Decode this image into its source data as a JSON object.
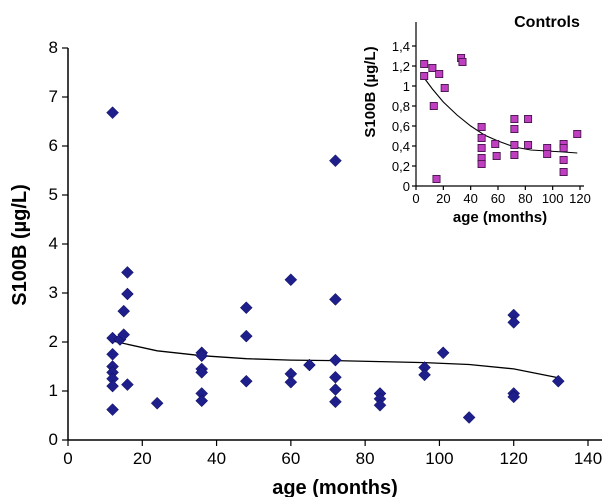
{
  "chart_data": [
    {
      "type": "scatter",
      "title": "",
      "xlabel": "age (months)",
      "ylabel": "S100B (µg/L)",
      "xlim": [
        0,
        140
      ],
      "ylim": [
        0,
        8
      ],
      "x_ticks": [
        "0",
        "20",
        "40",
        "60",
        "80",
        "100",
        "120",
        "140"
      ],
      "y_ticks": [
        "0",
        "1",
        "2",
        "3",
        "4",
        "5",
        "6",
        "7",
        "8"
      ],
      "grid": false,
      "marker": "diamond",
      "marker_color": "#1f1f8c",
      "series": [
        {
          "points": [
            [
              12,
              6.68
            ],
            [
              12,
              2.08
            ],
            [
              12,
              1.75
            ],
            [
              12,
              1.5
            ],
            [
              12,
              1.38
            ],
            [
              12,
              1.25
            ],
            [
              12,
              1.1
            ],
            [
              12,
              0.62
            ],
            [
              14,
              2.05
            ],
            [
              15,
              2.15
            ],
            [
              15,
              2.63
            ],
            [
              16,
              3.42
            ],
            [
              16,
              2.98
            ],
            [
              16,
              1.13
            ],
            [
              24,
              0.75
            ],
            [
              36,
              1.78
            ],
            [
              36,
              1.72
            ],
            [
              36,
              1.45
            ],
            [
              36,
              1.38
            ],
            [
              36,
              0.95
            ],
            [
              36,
              0.8
            ],
            [
              48,
              2.7
            ],
            [
              48,
              2.12
            ],
            [
              48,
              1.2
            ],
            [
              60,
              3.27
            ],
            [
              60,
              1.35
            ],
            [
              60,
              1.18
            ],
            [
              65,
              1.53
            ],
            [
              72,
              5.7
            ],
            [
              72,
              2.87
            ],
            [
              72,
              1.63
            ],
            [
              72,
              1.28
            ],
            [
              72,
              1.03
            ],
            [
              72,
              0.78
            ],
            [
              84,
              0.95
            ],
            [
              84,
              0.84
            ],
            [
              84,
              0.71
            ],
            [
              96,
              1.48
            ],
            [
              96,
              1.33
            ],
            [
              101,
              1.78
            ],
            [
              108,
              0.46
            ],
            [
              120,
              2.55
            ],
            [
              120,
              2.4
            ],
            [
              120,
              0.95
            ],
            [
              120,
              0.88
            ],
            [
              132,
              1.2
            ]
          ]
        }
      ],
      "trend_line": [
        [
          12,
          2.02
        ],
        [
          24,
          1.82
        ],
        [
          36,
          1.72
        ],
        [
          48,
          1.66
        ],
        [
          60,
          1.63
        ],
        [
          72,
          1.62
        ],
        [
          84,
          1.6
        ],
        [
          96,
          1.58
        ],
        [
          108,
          1.54
        ],
        [
          120,
          1.45
        ],
        [
          132,
          1.27
        ]
      ]
    },
    {
      "type": "scatter",
      "title": "Controls",
      "xlabel": "age (months)",
      "ylabel": "S100B (µg/L)",
      "xlim": [
        0,
        120
      ],
      "ylim": [
        0,
        1.4
      ],
      "x_ticks": [
        "0",
        "20",
        "40",
        "60",
        "80",
        "100",
        "120"
      ],
      "y_ticks": [
        "0",
        "0,2",
        "0,4",
        "0,6",
        "0,8",
        "1",
        "1,2",
        "1,4"
      ],
      "grid": false,
      "marker": "square",
      "marker_color": "#c03fc0",
      "series": [
        {
          "points": [
            [
              6,
              1.22
            ],
            [
              6,
              1.1
            ],
            [
              12,
              1.18
            ],
            [
              13,
              0.8
            ],
            [
              15,
              0.07
            ],
            [
              17,
              1.12
            ],
            [
              21,
              0.98
            ],
            [
              33,
              1.28
            ],
            [
              34,
              1.24
            ],
            [
              48,
              0.59
            ],
            [
              48,
              0.48
            ],
            [
              48,
              0.38
            ],
            [
              48,
              0.28
            ],
            [
              48,
              0.22
            ],
            [
              58,
              0.42
            ],
            [
              59,
              0.3
            ],
            [
              72,
              0.67
            ],
            [
              72,
              0.57
            ],
            [
              72,
              0.41
            ],
            [
              72,
              0.31
            ],
            [
              82,
              0.67
            ],
            [
              82,
              0.41
            ],
            [
              96,
              0.38
            ],
            [
              96,
              0.32
            ],
            [
              108,
              0.42
            ],
            [
              108,
              0.38
            ],
            [
              108,
              0.26
            ],
            [
              108,
              0.14
            ],
            [
              118,
              0.52
            ]
          ]
        }
      ],
      "trend_line": [
        [
          6,
          1.08
        ],
        [
          12,
          0.97
        ],
        [
          20,
          0.84
        ],
        [
          30,
          0.71
        ],
        [
          40,
          0.6
        ],
        [
          50,
          0.51
        ],
        [
          60,
          0.45
        ],
        [
          72,
          0.39
        ],
        [
          84,
          0.36
        ],
        [
          96,
          0.35
        ],
        [
          108,
          0.34
        ],
        [
          118,
          0.33
        ]
      ]
    }
  ]
}
